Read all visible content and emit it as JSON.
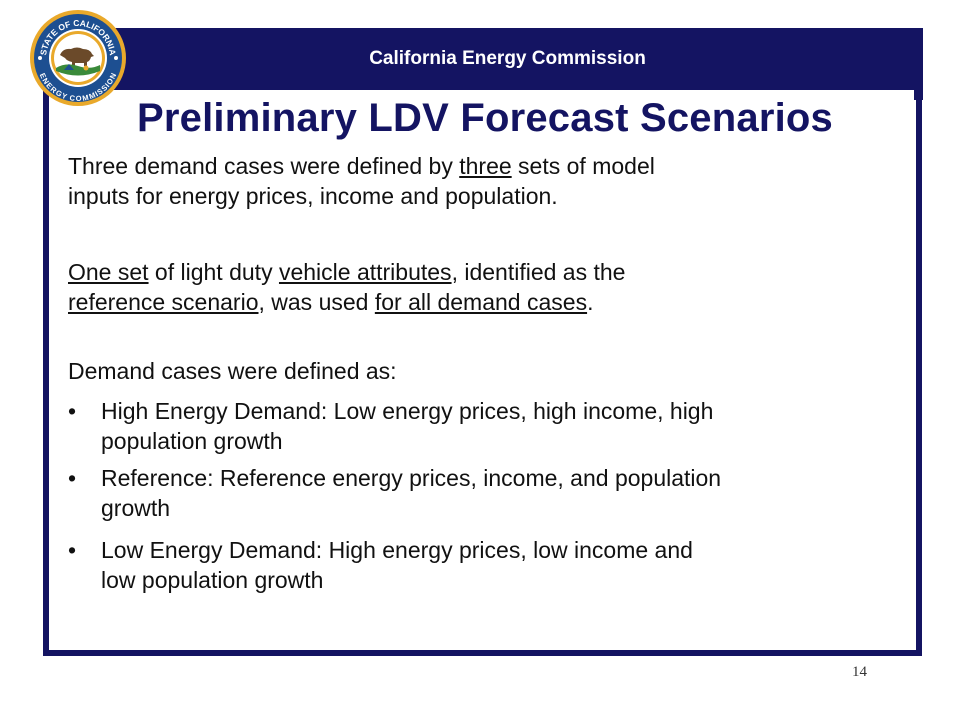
{
  "header": {
    "title": "California Energy Commission"
  },
  "seal": {
    "ring_text_top": "STATE OF CALIFORNIA",
    "ring_text_bottom": "ENERGY COMMISSION"
  },
  "slide": {
    "title": "Preliminary LDV Forecast Scenarios",
    "p1": {
      "a": "Three demand cases were defined by ",
      "u1": "three",
      "b": " sets of model",
      "line2": "inputs for energy prices, income and population."
    },
    "p2": {
      "u1": "One set",
      "a": " of light duty ",
      "u2": "vehicle attributes",
      "b": ", identified as the",
      "u3": "reference scenario",
      "c": ", was used ",
      "u4": "for all demand cases",
      "d": "."
    },
    "p3": "Demand cases were defined as:",
    "bullets": [
      {
        "marker": "•",
        "line1": "High Energy Demand: Low energy prices, high income, high",
        "line2": "population growth"
      },
      {
        "marker": "•",
        "line1": "Reference: Reference energy prices, income, and population",
        "line2": "growth"
      },
      {
        "marker": "•",
        "line1": "Low Energy Demand: High energy prices, low income and",
        "line2": "low population growth"
      }
    ],
    "page_number": "14"
  },
  "colors": {
    "navy": "#141462",
    "seal_blue": "#1d4f91",
    "seal_gold": "#e9a92b",
    "seal_green": "#3a8a3a"
  }
}
